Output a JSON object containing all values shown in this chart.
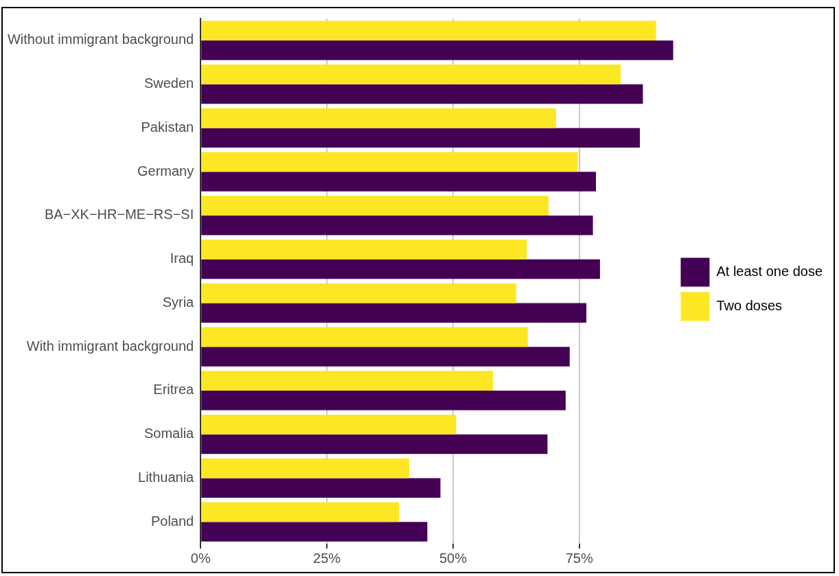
{
  "chart_data": {
    "type": "bar",
    "orientation": "horizontal",
    "categories": [
      "Without immigrant background",
      "Sweden",
      "Pakistan",
      "Germany",
      "BA−XK−HR−ME−RS−SI",
      "Iraq",
      "Syria",
      "With immigrant background",
      "Eritrea",
      "Somalia",
      "Lithuania",
      "Poland"
    ],
    "series": [
      {
        "name": "At least one dose",
        "color": "#440154",
        "values": [
          93.6,
          87.6,
          87.0,
          78.3,
          77.7,
          79.1,
          76.4,
          73.1,
          72.3,
          68.7,
          47.5,
          44.9
        ]
      },
      {
        "name": "Two doses",
        "color": "#fde725",
        "values": [
          90.2,
          83.2,
          70.4,
          74.7,
          68.9,
          64.6,
          62.5,
          64.8,
          57.9,
          50.6,
          41.3,
          39.3
        ]
      }
    ],
    "xlim": [
      0,
      94
    ],
    "xticks": [
      {
        "value": 0,
        "label": "0%"
      },
      {
        "value": 25,
        "label": "25%"
      },
      {
        "value": 50,
        "label": "50%"
      },
      {
        "value": 75,
        "label": "75%"
      }
    ],
    "grid": "x",
    "legend": "right"
  }
}
